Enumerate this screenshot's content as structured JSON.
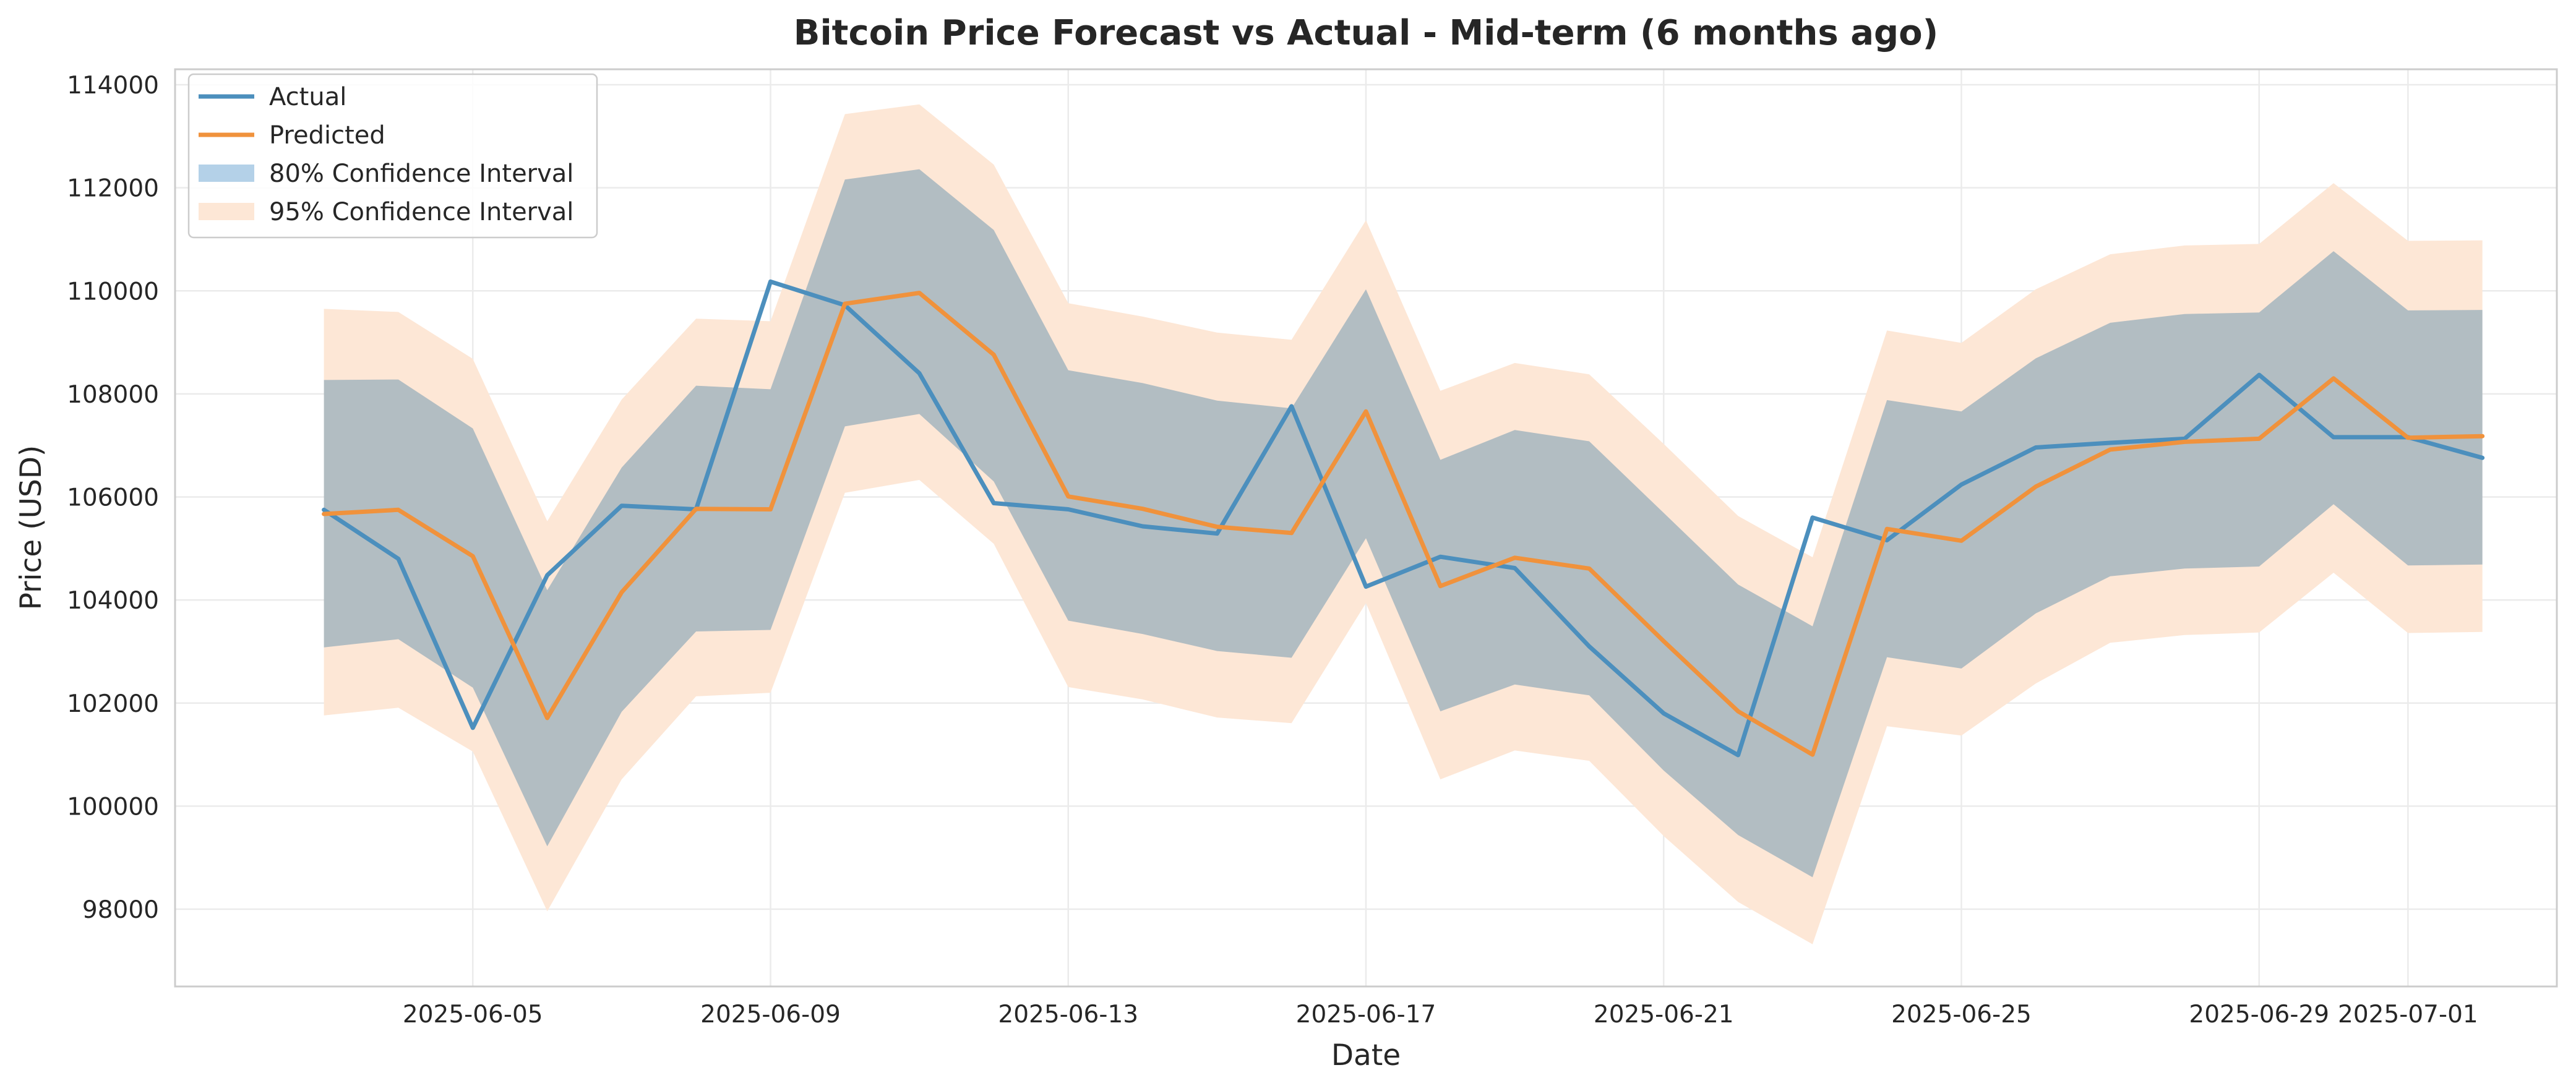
{
  "chart_data": {
    "type": "line",
    "title": "Bitcoin Price Forecast vs Actual - Mid-term (6 months ago)",
    "xlabel": "Date",
    "ylabel": "Price (USD)",
    "x": [
      "2025-06-03",
      "2025-06-04",
      "2025-06-05",
      "2025-06-06",
      "2025-06-07",
      "2025-06-08",
      "2025-06-09",
      "2025-06-10",
      "2025-06-11",
      "2025-06-12",
      "2025-06-13",
      "2025-06-14",
      "2025-06-15",
      "2025-06-16",
      "2025-06-17",
      "2025-06-18",
      "2025-06-19",
      "2025-06-20",
      "2025-06-21",
      "2025-06-22",
      "2025-06-23",
      "2025-06-24",
      "2025-06-25",
      "2025-06-26",
      "2025-06-27",
      "2025-06-28",
      "2025-06-29",
      "2025-06-30",
      "2025-07-01",
      "2025-07-02"
    ],
    "x_ticks": [
      "2025-06-05",
      "2025-06-09",
      "2025-06-13",
      "2025-06-17",
      "2025-06-21",
      "2025-06-25",
      "2025-06-29",
      "2025-07-01"
    ],
    "xlim": [
      "2025-06-01",
      "2025-07-03"
    ],
    "ylim": [
      96500,
      114300
    ],
    "y_ticks": [
      98000,
      100000,
      102000,
      104000,
      106000,
      108000,
      110000,
      112000,
      114000
    ],
    "grid": true,
    "legend_position": "top-left",
    "series": [
      {
        "name": "Actual",
        "color": "#4c8fbd",
        "values": [
          105750,
          104800,
          101520,
          104480,
          105830,
          105760,
          110180,
          109720,
          108400,
          105880,
          105760,
          105430,
          105290,
          107760,
          104260,
          104840,
          104620,
          103100,
          101800,
          100990,
          105600,
          105160,
          106240,
          106960,
          107050,
          107130,
          108370,
          107160,
          107160,
          106760
        ]
      },
      {
        "name": "Predicted",
        "color": "#f0923c",
        "values": [
          105670,
          105750,
          104850,
          101710,
          104150,
          105770,
          105760,
          109750,
          109960,
          108760,
          106010,
          105770,
          105420,
          105300,
          107660,
          104270,
          104820,
          104610,
          103200,
          101840,
          101000,
          105380,
          105150,
          106200,
          106920,
          107070,
          107130,
          108300,
          107150,
          107180
        ]
      }
    ],
    "bands": [
      {
        "name": "80% Confidence Interval",
        "color": "#b4d1e8",
        "lower": [
          103080,
          103240,
          102300,
          99220,
          101830,
          103390,
          103420,
          107370,
          107610,
          106300,
          103600,
          103340,
          103010,
          102880,
          105200,
          101840,
          102360,
          102150,
          100690,
          99440,
          98620,
          102890,
          102670,
          103740,
          104460,
          104610,
          104650,
          105860,
          104670,
          104690
        ],
        "upper": [
          108270,
          108280,
          107330,
          104190,
          106570,
          108160,
          108090,
          112160,
          112360,
          111180,
          108460,
          108210,
          107870,
          107720,
          110030,
          106720,
          107300,
          107080,
          105690,
          104300,
          103490,
          107880,
          107660,
          108690,
          109380,
          109550,
          109580,
          110770,
          109620,
          109630
        ]
      },
      {
        "name": "95% Confidence Interval",
        "color": "#fde7d6",
        "lower": [
          101760,
          101910,
          101060,
          97960,
          100520,
          102130,
          102200,
          106080,
          106330,
          105090,
          102310,
          102070,
          101720,
          101610,
          103940,
          100520,
          101080,
          100880,
          99420,
          98140,
          97320,
          101550,
          101370,
          102380,
          103170,
          103320,
          103370,
          104530,
          103360,
          103380
        ],
        "upper": [
          109650,
          109590,
          108680,
          105530,
          107890,
          109460,
          109410,
          113430,
          113620,
          112450,
          109760,
          109500,
          109190,
          109050,
          111370,
          108060,
          108600,
          108380,
          107030,
          105630,
          104830,
          109230,
          108990,
          110030,
          110710,
          110880,
          110910,
          112090,
          110970,
          110980
        ]
      }
    ]
  }
}
